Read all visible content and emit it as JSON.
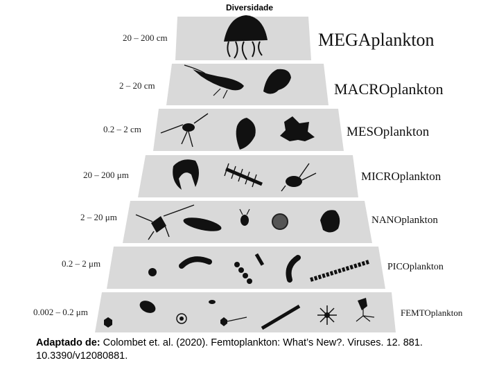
{
  "title": "Diversidade",
  "tiers": [
    {
      "size": "20 – 200 cm",
      "name": "MEGAplankton"
    },
    {
      "size": "2 – 20 cm",
      "name": "MACROplankton"
    },
    {
      "size": "0.2 – 2 cm",
      "name": "MESOplankton"
    },
    {
      "size": "20 – 200 μm",
      "name": "MICROplankton"
    },
    {
      "size": "2 – 20 μm",
      "name": "NANOplankton"
    },
    {
      "size": "0.2 – 2 μm",
      "name": "PICOplankton"
    },
    {
      "size": "0.002 – 0.2 μm",
      "name": "FEMTOplankton"
    }
  ],
  "caption": {
    "prefix": "Adaptado de:",
    "text": " Colombet et. al. (2020). Femtoplankton: What’s New?. Viruses. 12. 881. 10.3390/v12080881."
  },
  "colors": {
    "tier_fill": "#d9d9d9",
    "organism": "#111111"
  }
}
